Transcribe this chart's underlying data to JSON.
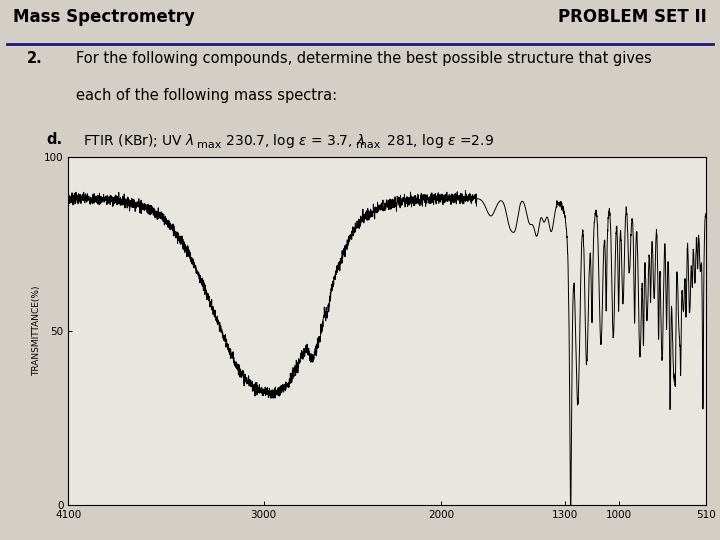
{
  "title_left": "Mass Spectrometry",
  "title_right": "PROBLEM SET II",
  "problem_number": "2.",
  "problem_text_line1": "For the following compounds, determine the best possible structure that gives",
  "problem_text_line2": "each of the following mass spectra:",
  "subproblem_label": "d.",
  "bg_color": "#d3cfc7",
  "plot_bg": "#e8e6df",
  "line_color": "#000000",
  "header_line_color": "#1a1a7a",
  "xtick_positions": [
    4100,
    3000,
    2000,
    1300,
    1000,
    510
  ],
  "xtick_labels": [
    "4100",
    "3000",
    "2000",
    "1300",
    "1000",
    "510"
  ],
  "ylabel_label": "TRANSMITTANCE(%)",
  "ytick_positions": [
    0,
    50,
    100
  ],
  "ytick_labels": [
    "0",
    "50",
    "100"
  ],
  "xlim_left": 4100,
  "xlim_right": 510,
  "ylim_bottom": 0,
  "ylim_top": 100
}
